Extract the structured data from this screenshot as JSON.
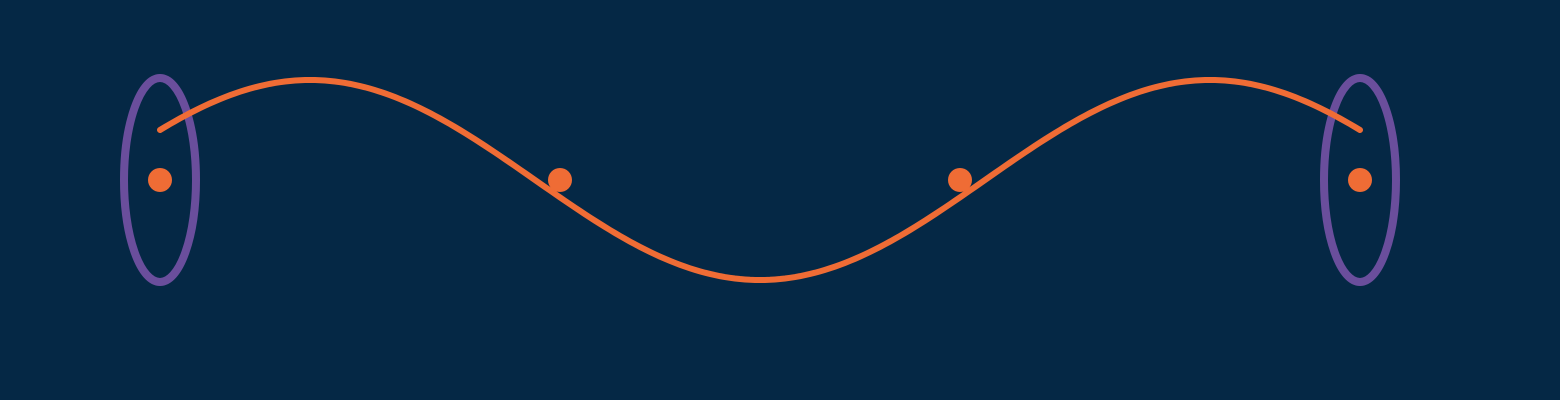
{
  "diagram": {
    "background_color": "#052845",
    "wave_color": "#ef6c35",
    "ring_color": "#6a4e9c",
    "nodes": [
      {
        "name": "node-left-end"
      },
      {
        "name": "node-first-crossing"
      },
      {
        "name": "node-second-crossing"
      },
      {
        "name": "node-right-end"
      }
    ],
    "rings": [
      {
        "name": "ring-left-end"
      },
      {
        "name": "ring-right-end"
      }
    ]
  }
}
